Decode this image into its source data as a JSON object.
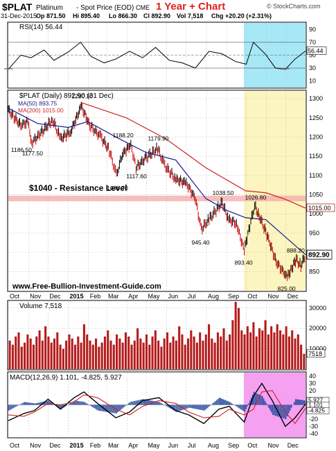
{
  "header": {
    "symbol": "$PLAT",
    "name": "Platinum",
    "description": "- Spot Price (EOD)",
    "exchange": "CME",
    "date": "31-Dec-2015",
    "op": "Op 871.50",
    "hi": "Hi 895.40",
    "lo": "Lo 866.30",
    "cl": "Cl 892.90",
    "vol": "Vol 7,518",
    "chg": "Chg +20.20 (+2.31%)",
    "chg_icon": "up-arrow-icon",
    "promo_title": "1 Year + Chart",
    "watermark": "© StockCharts.com"
  },
  "colors": {
    "price": "#000000",
    "ma50": "#1a1a8c",
    "ma200": "#cc2222",
    "up": "#000000",
    "down": "#cc0000",
    "resistance": "#f4a8a8",
    "rsi_highlight": "#9de6f5",
    "price_highlight": "#fbf3b4",
    "macd_highlight": "#f58ff0",
    "volume": "#b51c1c",
    "hist": "#2a4ea0",
    "promo": "#e02020"
  },
  "chart_data": [
    {
      "type": "line",
      "panel": "rsi",
      "title": "RSI(14) 56.44",
      "ylim": [
        0,
        100
      ],
      "yticks": [
        10,
        30,
        50,
        70,
        90
      ],
      "levels": [
        30,
        70
      ],
      "last_label": "56.44",
      "x": [
        "2014-10-01",
        "2014-10-20",
        "2014-11-05",
        "2014-11-25",
        "2014-12-10",
        "2015-01-01",
        "2015-01-20",
        "2015-02-05",
        "2015-02-25",
        "2015-03-15",
        "2015-04-05",
        "2015-04-25",
        "2015-05-15",
        "2015-06-05",
        "2015-06-25",
        "2015-07-15",
        "2015-08-05",
        "2015-08-25",
        "2015-09-15",
        "2015-10-01",
        "2015-10-12",
        "2015-10-30",
        "2015-11-15",
        "2015-11-30",
        "2015-12-15",
        "2015-12-31"
      ],
      "values": [
        28,
        50,
        46,
        58,
        42,
        55,
        70,
        48,
        38,
        44,
        56,
        46,
        62,
        42,
        38,
        30,
        56,
        52,
        40,
        36,
        70,
        52,
        30,
        28,
        44,
        56.44
      ]
    },
    {
      "type": "line",
      "panel": "price",
      "title": "$PLAT (Daily) 892.90 (31 Dec)",
      "ylim": [
        800,
        1320
      ],
      "yticks": [
        850,
        900,
        950,
        1000,
        1050,
        1100,
        1150,
        1200,
        1250,
        1300
      ],
      "xticks": [
        "Oct",
        "Nov",
        "Dec",
        "2015",
        "Feb",
        "Mar",
        "Apr",
        "May",
        "Jun",
        "Jul",
        "Aug",
        "Sep",
        "Oct",
        "Nov",
        "Dec"
      ],
      "last_label": "892.90",
      "ma200_label": "1015.00",
      "resistance": {
        "value": 1040,
        "label": "$1040 - Resistance Level"
      },
      "source_label": "www.Free-Bullion-Investment-Guide.com",
      "annotations": [
        {
          "x": "2014-10-20",
          "y": 1186.5,
          "label": "1186.50"
        },
        {
          "x": "2014-11-06",
          "y": 1177.5,
          "label": "1177.50"
        },
        {
          "x": "2015-01-21",
          "y": 1290.3,
          "label": "1290.30"
        },
        {
          "x": "2015-03-16",
          "y": 1086.7,
          "label": "1086.70"
        },
        {
          "x": "2015-03-25",
          "y": 1188.2,
          "label": "1188.20"
        },
        {
          "x": "2015-04-15",
          "y": 1117.6,
          "label": "1117.60"
        },
        {
          "x": "2015-05-18",
          "y": 1179.9,
          "label": "1179.90"
        },
        {
          "x": "2015-07-24",
          "y": 945.4,
          "label": "945.40"
        },
        {
          "x": "2015-08-25",
          "y": 1038.5,
          "label": "1038.50"
        },
        {
          "x": "2015-09-28",
          "y": 893.4,
          "label": "893.40"
        },
        {
          "x": "2015-10-14",
          "y": 1026.8,
          "label": "1026.80"
        },
        {
          "x": "2015-12-03",
          "y": 825.0,
          "label": "825.00"
        },
        {
          "x": "2015-12-17",
          "y": 888.2,
          "label": "888.20"
        }
      ],
      "series": [
        {
          "name": "MA(50) 893.75",
          "x": [
            "2014-10-01",
            "2014-11-15",
            "2015-01-01",
            "2015-01-31",
            "2015-03-15",
            "2015-04-30",
            "2015-06-15",
            "2015-07-31",
            "2015-08-31",
            "2015-09-30",
            "2015-10-31",
            "2015-11-30",
            "2015-12-31"
          ],
          "values": [
            1275,
            1235,
            1225,
            1240,
            1200,
            1160,
            1140,
            1040,
            1010,
            990,
            985,
            940,
            893.75
          ]
        },
        {
          "name": "MA(200) 1015.00",
          "x": [
            "2015-01-20",
            "2015-03-31",
            "2015-05-31",
            "2015-07-31",
            "2015-09-30",
            "2015-10-31",
            "2015-11-30",
            "2015-12-31"
          ],
          "values": [
            1290,
            1250,
            1195,
            1120,
            1060,
            1055,
            1038,
            1015
          ]
        },
        {
          "name": "Close",
          "x": [
            "2014-10-01",
            "2014-10-20",
            "2014-10-31",
            "2014-11-06",
            "2014-11-20",
            "2014-12-08",
            "2014-12-20",
            "2015-01-05",
            "2015-01-21",
            "2015-02-03",
            "2015-02-20",
            "2015-03-05",
            "2015-03-16",
            "2015-03-25",
            "2015-04-07",
            "2015-04-15",
            "2015-04-30",
            "2015-05-18",
            "2015-05-29",
            "2015-06-15",
            "2015-07-01",
            "2015-07-15",
            "2015-07-24",
            "2015-08-05",
            "2015-08-25",
            "2015-09-04",
            "2015-09-16",
            "2015-09-28",
            "2015-10-05",
            "2015-10-14",
            "2015-10-21",
            "2015-11-03",
            "2015-11-16",
            "2015-12-03",
            "2015-12-10",
            "2015-12-17",
            "2015-12-24",
            "2015-12-31"
          ],
          "values": [
            1270,
            1230,
            1240,
            1185,
            1210,
            1245,
            1195,
            1215,
            1280,
            1230,
            1200,
            1165,
            1100,
            1155,
            1180,
            1120,
            1145,
            1170,
            1125,
            1090,
            1080,
            1040,
            960,
            985,
            1030,
            985,
            975,
            905,
            960,
            1020,
            995,
            940,
            875,
            835,
            860,
            880,
            865,
            892.9
          ]
        }
      ]
    },
    {
      "type": "bar",
      "panel": "volume",
      "title": "Volume 7,518",
      "ylim": [
        0,
        33000
      ],
      "yticks": [
        10000,
        20000,
        30000
      ],
      "last_label": "7518",
      "values": [
        14000,
        12000,
        16000,
        18000,
        11000,
        13000,
        17000,
        15000,
        12000,
        16000,
        19000,
        14000,
        21000,
        16000,
        13000,
        15000,
        18000,
        12000,
        10000,
        14000,
        17000,
        15000,
        12000,
        16000,
        13000,
        22000,
        17000,
        14000,
        12000,
        15000,
        11000,
        13000,
        16000,
        19000,
        14000,
        12000,
        17000,
        15000,
        13000,
        18000,
        16000,
        12000,
        14000,
        20000,
        15000,
        13000,
        17000,
        12000,
        16000,
        19000,
        14000,
        11000,
        15000,
        18000,
        13000,
        16000,
        14000,
        21000,
        17000,
        12000,
        15000,
        19000,
        16000,
        13000,
        18000,
        14000,
        17000,
        22000,
        15000,
        13000,
        18000,
        16000,
        20000,
        14000,
        17000,
        24000,
        33000,
        30000,
        19000,
        17000,
        21000,
        18000,
        23000,
        16000,
        20000,
        19000,
        24000,
        17000,
        21000,
        18000,
        22000,
        19000,
        17000,
        21000,
        16000,
        19000,
        15000,
        17000,
        12000,
        7518
      ]
    },
    {
      "type": "line",
      "panel": "macd",
      "title": "MACD(12,26,9) 1.101, -4.825, 5.927",
      "ylim": [
        -45,
        45
      ],
      "yticks": [
        -40,
        -30,
        -20,
        -10,
        0,
        10,
        20,
        30,
        40
      ],
      "last_labels": [
        "5.927",
        "1.101",
        "-4.825"
      ],
      "x": [
        "2014-10-01",
        "2014-10-25",
        "2014-11-10",
        "2014-12-01",
        "2014-12-20",
        "2015-01-10",
        "2015-01-25",
        "2015-02-15",
        "2015-03-15",
        "2015-04-05",
        "2015-04-25",
        "2015-05-20",
        "2015-06-15",
        "2015-07-05",
        "2015-07-28",
        "2015-08-20",
        "2015-09-05",
        "2015-09-28",
        "2015-10-12",
        "2015-10-25",
        "2015-11-10",
        "2015-11-30",
        "2015-12-15",
        "2015-12-31"
      ],
      "series": [
        {
          "name": "MACD",
          "values": [
            -22,
            -12,
            -8,
            8,
            -6,
            10,
            18,
            2,
            -18,
            -10,
            6,
            10,
            -8,
            -14,
            -26,
            -6,
            -2,
            -24,
            12,
            30,
            6,
            -30,
            -18,
            1.101
          ]
        },
        {
          "name": "Signal",
          "values": [
            -14,
            -16,
            -10,
            2,
            0,
            4,
            14,
            10,
            -6,
            -14,
            -2,
            6,
            2,
            -10,
            -18,
            -16,
            -6,
            -14,
            -6,
            18,
            20,
            -10,
            -26,
            -4.825
          ]
        }
      ]
    }
  ]
}
